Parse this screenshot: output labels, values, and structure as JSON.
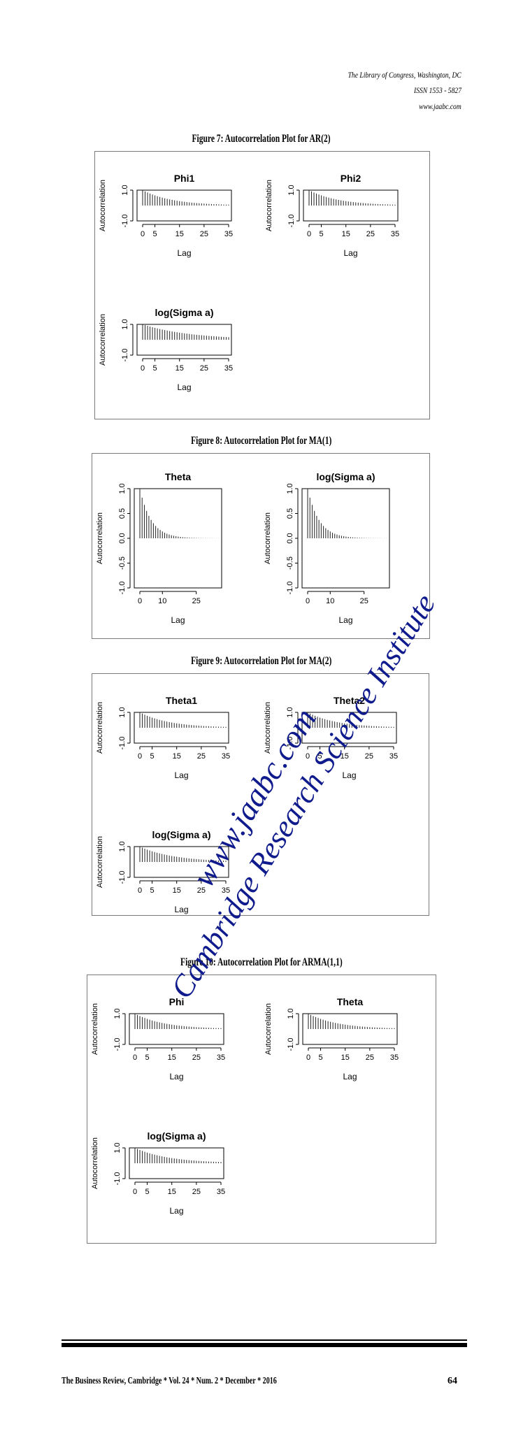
{
  "header": {
    "line1": "The Library of Congress, Washington, DC",
    "line2": "ISSN 1553 - 5827",
    "line3": "www.jaabc.com"
  },
  "figures": [
    {
      "title": "Figure 7: Autocorrelation Plot for AR(2)",
      "layout": "grid2x2",
      "panels": [
        {
          "title": "Phi1",
          "ylabel": "Autocorrelation",
          "xlabel": "Lag",
          "xticks": [
            "0",
            "5",
            "15",
            "25",
            "35"
          ],
          "yticks": [
            "1.0",
            "-1.0"
          ],
          "max_lag": 35,
          "acf_decay": 0.92
        },
        {
          "title": "Phi2",
          "ylabel": "Autocorrelation",
          "xlabel": "Lag",
          "xticks": [
            "0",
            "5",
            "15",
            "25",
            "35"
          ],
          "yticks": [
            "1.0",
            "-1.0"
          ],
          "max_lag": 35,
          "acf_decay": 0.92
        },
        {
          "title": "log(Sigma a)",
          "ylabel": "Autocorrelation",
          "xlabel": "Lag",
          "xticks": [
            "0",
            "5",
            "15",
            "25",
            "35"
          ],
          "yticks": [
            "1.0",
            "-1.0"
          ],
          "max_lag": 35,
          "acf_decay": 0.95
        }
      ]
    },
    {
      "title": "Figure 8: Autocorrelation Plot for MA(1)",
      "layout": "row",
      "panels": [
        {
          "title": "Theta",
          "ylabel": "Autocorrelation",
          "xlabel": "Lag",
          "xticks": [
            "0",
            "10",
            "25"
          ],
          "yticks": [
            "1.0",
            "0.5",
            "0.0",
            "-0.5",
            "-1.0"
          ],
          "max_lag": 35,
          "acf_decay": 0.82
        },
        {
          "title": "log(Sigma a)",
          "ylabel": "Autocorrelation",
          "xlabel": "Lag",
          "xticks": [
            "0",
            "10",
            "25"
          ],
          "yticks": [
            "1.0",
            "0.5",
            "0.0",
            "-0.5",
            "-1.0"
          ],
          "max_lag": 35,
          "acf_decay": 0.82
        }
      ]
    },
    {
      "title": "Figure 9: Autocorrelation Plot for MA(2)",
      "layout": "grid2x2",
      "panels": [
        {
          "title": "Theta1",
          "ylabel": "Autocorrelation",
          "xlabel": "Lag",
          "xticks": [
            "0",
            "5",
            "15",
            "25",
            "35"
          ],
          "yticks": [
            "1.0",
            "-1.0"
          ],
          "max_lag": 35,
          "acf_decay": 0.92
        },
        {
          "title": "Theta2",
          "ylabel": "Autocorrelation",
          "xlabel": "Lag",
          "xticks": [
            "0",
            "5",
            "15",
            "25",
            "35"
          ],
          "yticks": [
            "1.0",
            "-1.0"
          ],
          "max_lag": 35,
          "acf_decay": 0.92
        },
        {
          "title": "log(Sigma a)",
          "ylabel": "Autocorrelation",
          "xlabel": "Lag",
          "xticks": [
            "0",
            "5",
            "15",
            "25",
            "35"
          ],
          "yticks": [
            "1.0",
            "-1.0"
          ],
          "max_lag": 35,
          "acf_decay": 0.93
        }
      ]
    },
    {
      "title": "Figure 10: Autocorrelation Plot for ARMA(1,1)",
      "layout": "grid2x2",
      "panels": [
        {
          "title": "Phi",
          "ylabel": "Autocorrelation",
          "xlabel": "Lag",
          "xticks": [
            "0",
            "5",
            "15",
            "25",
            "35"
          ],
          "yticks": [
            "1.0",
            "-1.0"
          ],
          "max_lag": 35,
          "acf_decay": 0.92
        },
        {
          "title": "Theta",
          "ylabel": "Autocorrelation",
          "xlabel": "Lag",
          "xticks": [
            "0",
            "5",
            "15",
            "25",
            "35"
          ],
          "yticks": [
            "1.0",
            "-1.0"
          ],
          "max_lag": 35,
          "acf_decay": 0.92
        },
        {
          "title": "log(Sigma a)",
          "ylabel": "Autocorrelation",
          "xlabel": "Lag",
          "xticks": [
            "0",
            "5",
            "15",
            "25",
            "35"
          ],
          "yticks": [
            "1.0",
            "-1.0"
          ],
          "max_lag": 35,
          "acf_decay": 0.93
        }
      ]
    }
  ],
  "watermark": {
    "line1": "www.jaabc.com",
    "line2": "Cambridge Research Science Institute",
    "color": "#0f1b8c"
  },
  "footer": {
    "journal": "The Business Review, Cambridge * Vol. 24 * Num. 2 * December * 2016",
    "page": "64"
  }
}
